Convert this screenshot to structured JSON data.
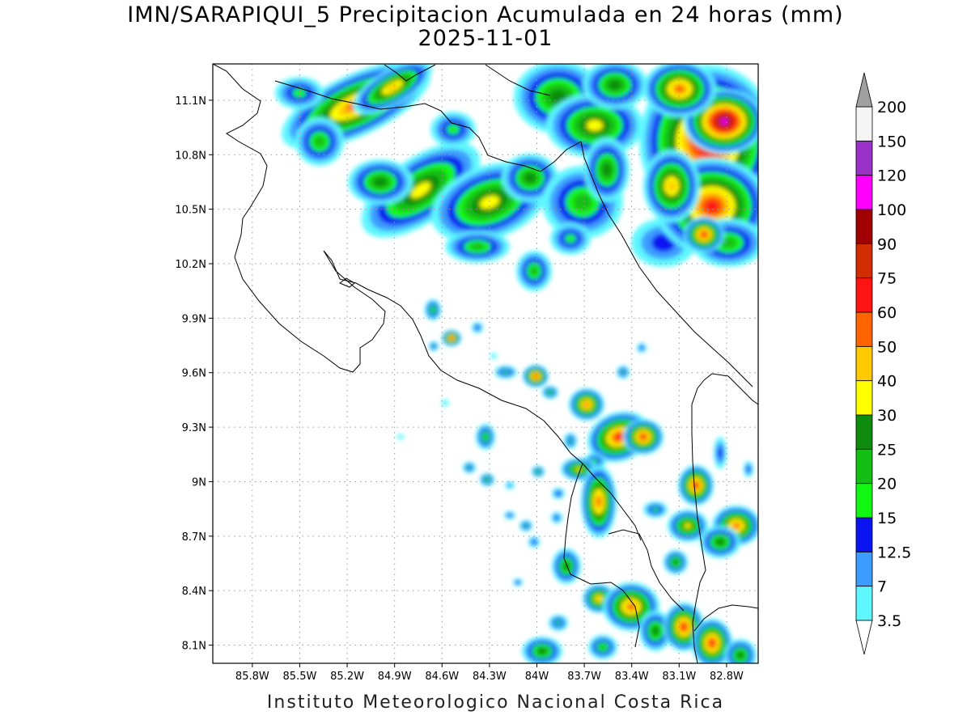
{
  "title": {
    "line1": "IMN/SARAPIQUI_5 Precipitacion Acumulada en 24 horas (mm)",
    "line2": "2025-11-01"
  },
  "map": {
    "lon_range": [
      -86.05,
      -82.6
    ],
    "lat_range": [
      8.0,
      11.3
    ],
    "x_ticks": [
      {
        "lon": -85.8,
        "label": "85.8W"
      },
      {
        "lon": -85.5,
        "label": "85.5W"
      },
      {
        "lon": -85.2,
        "label": "85.2W"
      },
      {
        "lon": -84.9,
        "label": "84.9W"
      },
      {
        "lon": -84.6,
        "label": "84.6W"
      },
      {
        "lon": -84.3,
        "label": "84.3W"
      },
      {
        "lon": -84.0,
        "label": "84W"
      },
      {
        "lon": -83.7,
        "label": "83.7W"
      },
      {
        "lon": -83.4,
        "label": "83.4W"
      },
      {
        "lon": -83.1,
        "label": "83.1W"
      },
      {
        "lon": -82.8,
        "label": "82.8W"
      }
    ],
    "y_ticks": [
      {
        "lat": 11.1,
        "label": "11.1N"
      },
      {
        "lat": 10.8,
        "label": "10.8N"
      },
      {
        "lat": 10.5,
        "label": "10.5N"
      },
      {
        "lat": 10.2,
        "label": "10.2N"
      },
      {
        "lat": 9.9,
        "label": "9.9N"
      },
      {
        "lat": 9.6,
        "label": "9.6N"
      },
      {
        "lat": 9.3,
        "label": "9.3N"
      },
      {
        "lat": 9.0,
        "label": "9N"
      },
      {
        "lat": 8.7,
        "label": "8.7N"
      },
      {
        "lat": 8.4,
        "label": "8.4N"
      },
      {
        "lat": 8.1,
        "label": "8.1N"
      }
    ],
    "grid": true,
    "coastlines": true
  },
  "colorbar": {
    "unit": "mm",
    "levels": [
      {
        "value": "3.5",
        "color": "#5ff7ff"
      },
      {
        "value": "7",
        "color": "#3d9cff"
      },
      {
        "value": "12.5",
        "color": "#0a14f0"
      },
      {
        "value": "15",
        "color": "#12f712"
      },
      {
        "value": "20",
        "color": "#14be14"
      },
      {
        "value": "25",
        "color": "#0d8c0d"
      },
      {
        "value": "30",
        "color": "#ffff00"
      },
      {
        "value": "40",
        "color": "#ffc800"
      },
      {
        "value": "50",
        "color": "#ff6400"
      },
      {
        "value": "60",
        "color": "#ff1414"
      },
      {
        "value": "75",
        "color": "#d22d00"
      },
      {
        "value": "90",
        "color": "#a00000"
      },
      {
        "value": "100",
        "color": "#ff00ff"
      },
      {
        "value": "120",
        "color": "#9b32c8"
      },
      {
        "value": "150",
        "color": "#f5f5f5"
      },
      {
        "value": "200",
        "color": "#a0a0a0"
      }
    ]
  },
  "credit": "Instituto Meteorologico Nacional Costa Rica"
}
